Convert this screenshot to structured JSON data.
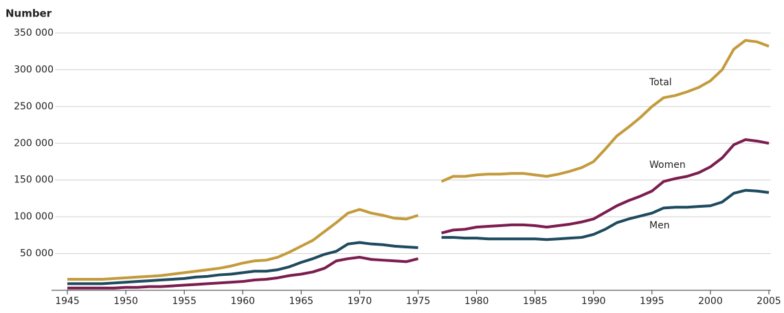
{
  "chart_data": {
    "type": "line",
    "y_label": "Number",
    "x": [
      1945,
      1946,
      1947,
      1948,
      1949,
      1950,
      1951,
      1952,
      1953,
      1954,
      1955,
      1956,
      1957,
      1958,
      1959,
      1960,
      1961,
      1962,
      1963,
      1964,
      1965,
      1966,
      1967,
      1968,
      1969,
      1970,
      1971,
      1972,
      1973,
      1974,
      1975,
      1976,
      1977,
      1978,
      1979,
      1980,
      1981,
      1982,
      1983,
      1984,
      1985,
      1986,
      1987,
      1988,
      1989,
      1990,
      1991,
      1992,
      1993,
      1994,
      1995,
      1996,
      1997,
      1998,
      1999,
      2000,
      2001,
      2002,
      2003,
      2004,
      2005
    ],
    "series": [
      {
        "name": "Total",
        "color": "#c49b3c",
        "values": [
          15000,
          15000,
          15000,
          15000,
          16000,
          17000,
          18000,
          19000,
          20000,
          22000,
          24000,
          26000,
          28000,
          30000,
          33000,
          37000,
          40000,
          41000,
          45000,
          52000,
          60000,
          68000,
          80000,
          92000,
          105000,
          110000,
          105000,
          102000,
          98000,
          97000,
          102000,
          null,
          148000,
          155000,
          155000,
          157000,
          158000,
          158000,
          159000,
          159000,
          157000,
          155000,
          158000,
          162000,
          167000,
          175000,
          192000,
          210000,
          222000,
          235000,
          250000,
          262000,
          265000,
          270000,
          276000,
          285000,
          300000,
          328000,
          340000,
          338000,
          332000
        ]
      },
      {
        "name": "Women",
        "color": "#7b1d4f",
        "values": [
          3000,
          3000,
          3000,
          3000,
          3000,
          4000,
          4000,
          5000,
          5000,
          6000,
          7000,
          8000,
          9000,
          10000,
          11000,
          12000,
          14000,
          15000,
          17000,
          20000,
          22000,
          25000,
          30000,
          40000,
          43000,
          45000,
          42000,
          41000,
          40000,
          39000,
          43000,
          null,
          78000,
          82000,
          83000,
          86000,
          87000,
          88000,
          89000,
          89000,
          88000,
          86000,
          88000,
          90000,
          93000,
          97000,
          106000,
          115000,
          122000,
          128000,
          135000,
          148000,
          152000,
          155000,
          160000,
          168000,
          180000,
          198000,
          205000,
          203000,
          200000
        ]
      },
      {
        "name": "Men",
        "color": "#1e4a5f",
        "values": [
          9000,
          9000,
          9000,
          9000,
          10000,
          11000,
          12000,
          13000,
          14000,
          15000,
          16000,
          18000,
          19000,
          21000,
          22000,
          24000,
          26000,
          26000,
          28000,
          32000,
          38000,
          43000,
          49000,
          53000,
          63000,
          65000,
          63000,
          62000,
          60000,
          59000,
          58000,
          null,
          72000,
          72000,
          71000,
          71000,
          70000,
          70000,
          70000,
          70000,
          70000,
          69000,
          70000,
          71000,
          72000,
          76000,
          83000,
          92000,
          97000,
          101000,
          105000,
          112000,
          113000,
          113000,
          114000,
          115000,
          120000,
          132000,
          136000,
          135000,
          133000
        ]
      }
    ],
    "xlim": [
      1944,
      2005
    ],
    "xticks": [
      1945,
      1950,
      1955,
      1960,
      1965,
      1970,
      1975,
      1980,
      1985,
      1990,
      1995,
      2000,
      2005
    ],
    "ylim": [
      0,
      350000
    ],
    "yticks": [
      {
        "value": 50000,
        "label": "50 000"
      },
      {
        "value": 100000,
        "label": "100 000"
      },
      {
        "value": 150000,
        "label": "150 000"
      },
      {
        "value": 200000,
        "label": "200 000"
      },
      {
        "value": 250000,
        "label": "250 000"
      },
      {
        "value": 300000,
        "label": "300 000"
      },
      {
        "value": 350000,
        "label": "350 000"
      }
    ],
    "grid": true
  }
}
